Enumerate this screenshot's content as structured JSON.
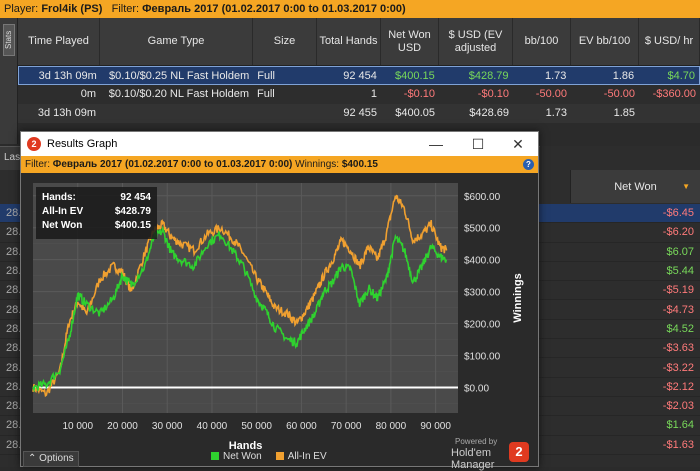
{
  "topbar": {
    "player_label": "Player:",
    "player": "Frol4ik (PS)",
    "filter_label": "Filter:",
    "filter": "Февраль 2017 (01.02.2017 0:00 to 01.03.2017 0:00)"
  },
  "sidetab": {
    "label": "Stats"
  },
  "table": {
    "headers": [
      "Time Played",
      "Game Type",
      "Size",
      "Total Hands",
      "Net Won USD",
      "$ USD (EV adjusted",
      "bb/100",
      "EV bb/100",
      "$ USD/ hr"
    ],
    "rows": [
      [
        "3d 13h 09m",
        "$0.10/$0.25 NL Fast Holdem",
        "Full",
        "92 454",
        "$400.15",
        "$428.79",
        "1.73",
        "1.86",
        "$4.70"
      ],
      [
        "0m",
        "$0.10/$0.20 NL Fast Holdem",
        "Full",
        "1",
        "-$0.10",
        "-$0.10",
        "-50.00",
        "-50.00",
        "-$360.00"
      ],
      [
        "3d 13h 09m",
        "",
        "",
        "92 455",
        "$400.05",
        "$428.69",
        "1.73",
        "1.85",
        ""
      ]
    ]
  },
  "lower": {
    "tab_label": "Las",
    "netwon_header": "Net Won",
    "rows": [
      {
        "date": "28.",
        "value": "-$6.45",
        "sign": "neg"
      },
      {
        "date": "28.",
        "value": "-$6.20",
        "sign": "neg"
      },
      {
        "date": "28.",
        "value": "$6.07",
        "sign": "pos"
      },
      {
        "date": "28.",
        "value": "$5.44",
        "sign": "pos"
      },
      {
        "date": "28.",
        "value": "-$5.19",
        "sign": "neg"
      },
      {
        "date": "28.",
        "value": "-$4.73",
        "sign": "neg"
      },
      {
        "date": "28.",
        "value": "$4.52",
        "sign": "pos"
      },
      {
        "date": "28.",
        "value": "-$3.63",
        "sign": "neg"
      },
      {
        "date": "28.",
        "value": "-$3.22",
        "sign": "neg"
      },
      {
        "date": "28.",
        "value": "-$2.12",
        "sign": "neg"
      },
      {
        "date": "28.",
        "value": "-$2.03",
        "sign": "neg"
      },
      {
        "date": "28.",
        "value": "$1.64",
        "sign": "pos"
      },
      {
        "date": "28.",
        "value": "-$1.63",
        "sign": "neg"
      }
    ]
  },
  "window": {
    "title": "Results Graph",
    "filter_label": "Filter:",
    "filter": "Февраль 2017 (01.02.2017 0:00 to 01.03.2017 0:00)",
    "winnings_label": "Winnings:",
    "winnings": "$400.15",
    "help": "?",
    "stats": {
      "hands_label": "Hands:",
      "hands": "92 454",
      "ev_label": "All-In EV",
      "ev": "$428.79",
      "nw_label": "Net Won",
      "nw": "$400.15"
    },
    "options": "Options",
    "powered_by": "Powered by",
    "brand": "Hold'em Manager",
    "brand_logo": "2",
    "colors": {
      "net_won": "#2fd12f",
      "allin_ev": "#f0a030",
      "accent": "#f5a623"
    }
  },
  "chart_data": {
    "type": "line",
    "xlabel": "Hands",
    "ylabel": "Winnings",
    "xlim": [
      0,
      95000
    ],
    "ylim": [
      -80,
      640
    ],
    "x_ticks": [
      "10 000",
      "20 000",
      "30 000",
      "40 000",
      "50 000",
      "60 000",
      "70 000",
      "80 000",
      "90 000"
    ],
    "y_ticks": [
      "$0.00",
      "$100.00",
      "$200.00",
      "$300.00",
      "$400.00",
      "$500.00",
      "$600.00"
    ],
    "x": [
      0,
      3000,
      6000,
      8000,
      10000,
      12000,
      15000,
      18000,
      20000,
      22000,
      25000,
      27000,
      29000,
      31000,
      33000,
      36000,
      39000,
      42000,
      45000,
      47000,
      50000,
      52000,
      54000,
      57000,
      59000,
      61000,
      63000,
      65000,
      67000,
      69000,
      71000,
      73000,
      75000,
      77000,
      79000,
      81000,
      83000,
      85000,
      87000,
      89000,
      91000,
      92454
    ],
    "series": [
      {
        "name": "Net Won",
        "values": [
          0,
          10,
          55,
          150,
          290,
          260,
          230,
          280,
          350,
          320,
          380,
          470,
          490,
          420,
          400,
          380,
          450,
          480,
          420,
          380,
          280,
          240,
          190,
          150,
          140,
          190,
          230,
          300,
          330,
          380,
          370,
          260,
          310,
          280,
          340,
          470,
          430,
          330,
          380,
          440,
          410,
          400
        ]
      },
      {
        "name": "All-In EV",
        "values": [
          0,
          -20,
          50,
          200,
          270,
          230,
          340,
          380,
          360,
          300,
          420,
          490,
          510,
          470,
          450,
          430,
          480,
          500,
          460,
          420,
          340,
          300,
          250,
          230,
          200,
          240,
          290,
          350,
          400,
          460,
          430,
          380,
          440,
          400,
          480,
          600,
          560,
          460,
          480,
          510,
          440,
          429
        ]
      }
    ]
  }
}
